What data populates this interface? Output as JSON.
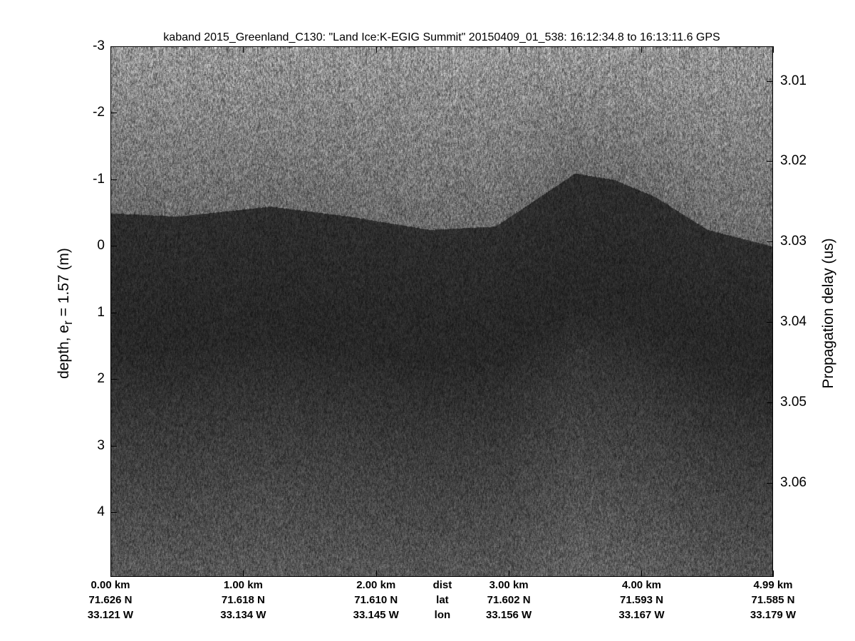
{
  "chart_data": {
    "type": "heatmap",
    "colormap": "gray",
    "title": "kaband 2015_Greenland_C130: \"Land Ice:K-EGIG Summit\"  20150409_01_538: 16:12:34.8 to 16:13:11.6 GPS",
    "ylabel": "depth, e",
    "ylabel_sub": "r",
    "ylabel_tail": " = 1.57 (m)",
    "y2label": "Propagation delay (us)",
    "ylim": [
      -3,
      4.97
    ],
    "yticks": [
      "-3",
      "-2",
      "-1",
      "0",
      "1",
      "2",
      "3",
      "4"
    ],
    "y2lim": [
      3.0057,
      3.0717
    ],
    "y2ticks": [
      "3.01",
      "3.02",
      "3.03",
      "3.04",
      "3.05",
      "3.06"
    ],
    "xlim_km": [
      0,
      4.99
    ],
    "xrows": [
      {
        "label": "dist",
        "ticks": [
          "0.00 km",
          "1.00 km",
          "2.00 km",
          "3.00 km",
          "4.00 km",
          "4.99 km"
        ]
      },
      {
        "label": "lat",
        "ticks": [
          "71.626 N",
          "71.618 N",
          "71.610 N",
          "71.602 N",
          "71.593 N",
          "71.585 N"
        ]
      },
      {
        "label": "lon",
        "ticks": [
          "33.121 W",
          "33.134 W",
          "33.145 W",
          "33.156 W",
          "33.167 W",
          "33.179 W"
        ]
      }
    ],
    "xtick_positions_km": [
      0,
      1,
      2,
      3,
      4,
      4.99
    ],
    "surface_profile": {
      "dist_km": [
        0,
        0.5,
        1.2,
        1.8,
        2.4,
        2.9,
        3.2,
        3.5,
        3.8,
        4.1,
        4.5,
        4.99
      ],
      "depth_m": [
        -0.5,
        -0.45,
        -0.6,
        -0.45,
        -0.25,
        -0.3,
        -0.7,
        -1.1,
        -1.0,
        -0.75,
        -0.25,
        0.0
      ]
    }
  }
}
